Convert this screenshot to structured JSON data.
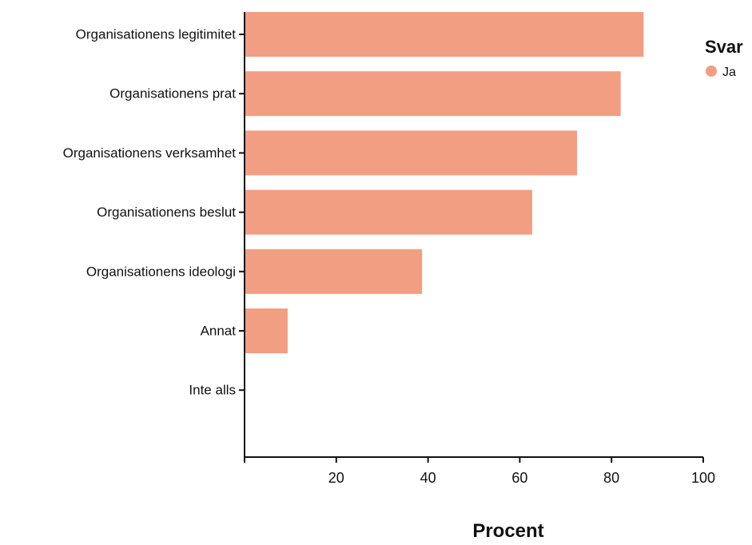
{
  "chart_data": {
    "type": "bar",
    "orientation": "horizontal",
    "categories": [
      "Organisationens legitimitet",
      "Organisationens prat",
      "Organisationens verksamhet",
      "Organisationens beslut",
      "Organisationens ideologi",
      "Annat",
      "Inte alls"
    ],
    "series": [
      {
        "name": "Ja",
        "color": "#F29E82",
        "values": [
          87,
          82,
          72.5,
          62.7,
          38.7,
          9.4,
          0
        ]
      }
    ],
    "xlabel": "Procent",
    "ylabel": "",
    "xlim": [
      0,
      100
    ],
    "xticks": [
      "20",
      "40",
      "60",
      "80",
      "100"
    ],
    "legend": {
      "title": "Svar",
      "placement": "top-right",
      "marker": "circle"
    },
    "grid": false
  }
}
